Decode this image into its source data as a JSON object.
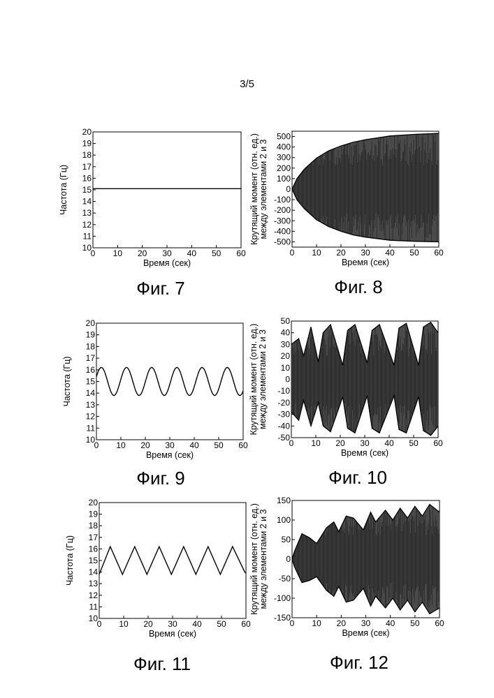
{
  "page": {
    "number": "3/5"
  },
  "chart_data": [
    {
      "type": "line",
      "caption": "Фиг. 7",
      "xlabel": "Время (сек)",
      "ylabel": [
        "Частота (Гц)"
      ],
      "xlim": [
        0,
        60
      ],
      "ylim": [
        10,
        20
      ],
      "xticks": [
        0,
        10,
        20,
        30,
        40,
        50,
        60
      ],
      "yticks": [
        10,
        11,
        12,
        13,
        14,
        15,
        16,
        17,
        18,
        19,
        20
      ],
      "series": [
        {
          "x": [
            0,
            60
          ],
          "values": [
            15.1,
            15.1
          ]
        }
      ]
    },
    {
      "type": "area",
      "caption": "Фиг. 8",
      "xlabel": "Время (сек)",
      "ylabel": [
        "Крутящий момент (отн. ед.)",
        "между элементами 2 и 3"
      ],
      "xlim": [
        0,
        60
      ],
      "ylim": [
        -550,
        550
      ],
      "xticks": [
        0,
        10,
        20,
        30,
        40,
        50,
        60
      ],
      "yticks": [
        -500,
        -400,
        -300,
        -200,
        -100,
        0,
        100,
        200,
        300,
        400,
        500
      ],
      "envelope": {
        "x": [
          0,
          2,
          5,
          10,
          15,
          20,
          25,
          30,
          40,
          50,
          60
        ],
        "upper": [
          0,
          100,
          190,
          295,
          365,
          410,
          445,
          470,
          505,
          520,
          530
        ],
        "lower": [
          0,
          -100,
          -185,
          -290,
          -355,
          -400,
          -435,
          -455,
          -485,
          -495,
          -500
        ]
      }
    },
    {
      "type": "line",
      "caption": "Фиг. 9",
      "xlabel": "Время (сек)",
      "ylabel": [
        "Частота (Гц)"
      ],
      "xlim": [
        0,
        60
      ],
      "ylim": [
        10,
        20
      ],
      "xticks": [
        0,
        10,
        20,
        30,
        40,
        50,
        60
      ],
      "yticks": [
        10,
        11,
        12,
        13,
        14,
        15,
        16,
        17,
        18,
        19,
        20
      ],
      "series": [
        {
          "shape": "sine",
          "center": 15,
          "amplitude": 1.2,
          "period": 10.3,
          "phase_at_zero": 0.0
        }
      ]
    },
    {
      "type": "area",
      "caption": "Фиг. 10",
      "xlabel": "Время (сек)",
      "ylabel": [
        "Крутящий момент (отн. ед.)",
        "между элементами 2 и 3"
      ],
      "xlim": [
        0,
        60
      ],
      "ylim": [
        -50,
        50
      ],
      "xticks": [
        0,
        10,
        20,
        30,
        40,
        50,
        60
      ],
      "yticks": [
        -50,
        -40,
        -30,
        -20,
        -10,
        0,
        10,
        20,
        30,
        40,
        50
      ],
      "envelope": {
        "x": [
          0,
          3,
          5,
          8,
          11,
          13,
          16,
          21,
          23,
          26,
          31,
          33,
          36,
          42,
          44,
          47,
          52,
          54,
          57,
          60
        ],
        "upper": [
          30,
          35,
          20,
          45,
          15,
          40,
          47,
          12,
          42,
          47,
          14,
          42,
          47,
          12,
          44,
          48,
          12,
          45,
          49,
          40
        ],
        "lower": [
          -28,
          -35,
          -18,
          -40,
          -20,
          -40,
          -45,
          -15,
          -42,
          -46,
          -14,
          -42,
          -46,
          -14,
          -43,
          -46,
          -15,
          -44,
          -48,
          -40
        ]
      }
    },
    {
      "type": "line",
      "caption": "Фиг. 11",
      "xlabel": "Время (сек)",
      "ylabel": [
        "Частота (Гц)"
      ],
      "xlim": [
        0,
        60
      ],
      "ylim": [
        10,
        20
      ],
      "xticks": [
        0,
        10,
        20,
        30,
        40,
        50,
        60
      ],
      "yticks": [
        10,
        11,
        12,
        13,
        14,
        15,
        16,
        17,
        18,
        19,
        20
      ],
      "series": [
        {
          "x": [
            0,
            4.5,
            9.5,
            14.5,
            19.5,
            24.5,
            29.5,
            34.5,
            39.5,
            44.5,
            49.5,
            54.5,
            59.5,
            60
          ],
          "values": [
            13.8,
            16.2,
            13.8,
            16.2,
            13.8,
            16.2,
            13.8,
            16.2,
            13.8,
            16.2,
            13.8,
            16.2,
            14.0,
            13.9
          ]
        }
      ]
    },
    {
      "type": "area",
      "caption": "Фиг. 12",
      "xlabel": "Время (сек)",
      "ylabel": [
        "Крутящий момент (отн. ед.)",
        "между элементами 2 и 3"
      ],
      "xlim": [
        0,
        60
      ],
      "ylim": [
        -150,
        150
      ],
      "xticks": [
        0,
        10,
        20,
        30,
        40,
        50,
        60
      ],
      "yticks": [
        -150,
        -100,
        -50,
        0,
        50,
        100,
        150
      ],
      "envelope": {
        "x": [
          0,
          1,
          4,
          7,
          10,
          14,
          17,
          19,
          22,
          25,
          29,
          32,
          34,
          38,
          41,
          44,
          47,
          50,
          53,
          56,
          60
        ],
        "upper": [
          0,
          20,
          65,
          55,
          40,
          80,
          95,
          70,
          110,
          105,
          75,
          120,
          95,
          125,
          100,
          130,
          105,
          135,
          110,
          140,
          120
        ],
        "lower": [
          0,
          -20,
          -60,
          -55,
          -45,
          -80,
          -95,
          -70,
          -110,
          -105,
          -75,
          -120,
          -95,
          -125,
          -100,
          -130,
          -105,
          -135,
          -110,
          -140,
          -125
        ]
      }
    }
  ]
}
